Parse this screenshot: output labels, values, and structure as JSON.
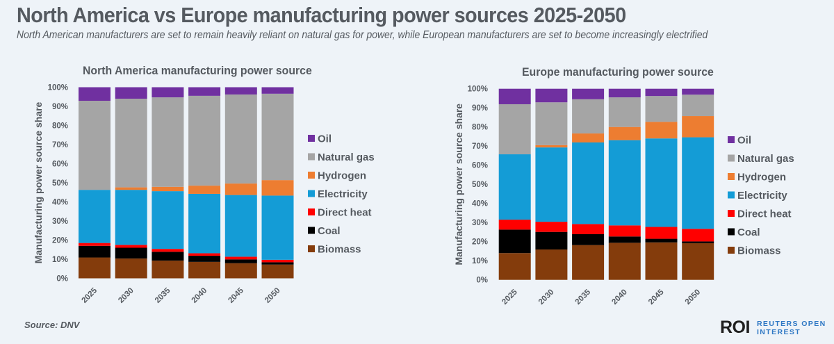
{
  "header": {
    "title": "North America vs Europe manufacturing power sources 2025-2050",
    "subtitle": "North American manufacturers are set to remain heavily reliant on natural gas for power, while European manufacturers are set to become increasingly electrified"
  },
  "footer": {
    "source": "Source:  DNV",
    "logo_mark": "ROI",
    "logo_line1": "REUTERS OPEN",
    "logo_line2": "INTEREST"
  },
  "colors": {
    "Oil": "#7030a0",
    "Natural gas": "#a5a5a5",
    "Hydrogen": "#ed7d31",
    "Electricity": "#149cd6",
    "Direct heat": "#ff0000",
    "Coal": "#000000",
    "Biomass": "#843c0c"
  },
  "chart_data": [
    {
      "type": "bar",
      "stacked": true,
      "title": "North America manufacturing power source",
      "xlabel": "",
      "ylabel": "Manufacturing power source share",
      "ylim": [
        0,
        100
      ],
      "yticks": [
        "0%",
        "10%",
        "20%",
        "30%",
        "40%",
        "50%",
        "60%",
        "70%",
        "80%",
        "90%",
        "100%"
      ],
      "categories": [
        "2025",
        "2030",
        "2035",
        "2040",
        "2045",
        "2050"
      ],
      "legend_position": "right",
      "legend_order": [
        "Oil",
        "Natural gas",
        "Hydrogen",
        "Electricity",
        "Direct heat",
        "Coal",
        "Biomass"
      ],
      "series": [
        {
          "name": "Biomass",
          "values": [
            10.9,
            10.4,
            9.3,
            8.6,
            7.9,
            7.2
          ]
        },
        {
          "name": "Coal",
          "values": [
            6.1,
            5.6,
            4.6,
            3.2,
            2.0,
            1.2
          ]
        },
        {
          "name": "Direct heat",
          "values": [
            1.5,
            1.5,
            1.5,
            1.3,
            1.4,
            1.3
          ]
        },
        {
          "name": "Electricity",
          "values": [
            27.8,
            28.8,
            30.2,
            31.1,
            32.3,
            33.6
          ]
        },
        {
          "name": "Hydrogen",
          "values": [
            0.0,
            1.3,
            2.3,
            4.3,
            6.0,
            8.1
          ]
        },
        {
          "name": "Natural gas",
          "values": [
            46.6,
            46.4,
            46.8,
            47.0,
            46.6,
            45.2
          ]
        },
        {
          "name": "Oil",
          "values": [
            7.1,
            6.0,
            5.3,
            4.5,
            3.8,
            3.4
          ]
        }
      ]
    },
    {
      "type": "bar",
      "stacked": true,
      "title": "Europe manufacturing power source",
      "xlabel": "",
      "ylabel": "Manufacturing power source share",
      "ylim": [
        0,
        100
      ],
      "yticks": [
        "0%",
        "10%",
        "20%",
        "30%",
        "40%",
        "50%",
        "60%",
        "70%",
        "80%",
        "90%",
        "100%"
      ],
      "categories": [
        "2025",
        "2030",
        "2035",
        "2040",
        "2045",
        "2050"
      ],
      "legend_position": "right",
      "legend_order": [
        "Oil",
        "Natural gas",
        "Hydrogen",
        "Electricity",
        "Direct heat",
        "Coal",
        "Biomass"
      ],
      "series": [
        {
          "name": "Biomass",
          "values": [
            14.0,
            15.9,
            18.2,
            19.4,
            19.6,
            19.2
          ]
        },
        {
          "name": "Coal",
          "values": [
            12.3,
            9.2,
            5.7,
            3.3,
            1.9,
            0.9
          ]
        },
        {
          "name": "Direct heat",
          "values": [
            5.2,
            5.3,
            5.3,
            5.8,
            6.2,
            6.6
          ]
        },
        {
          "name": "Electricity",
          "values": [
            34.2,
            38.9,
            42.7,
            44.6,
            46.3,
            47.9
          ]
        },
        {
          "name": "Hydrogen",
          "values": [
            0.0,
            1.2,
            4.7,
            6.9,
            8.7,
            11.1
          ]
        },
        {
          "name": "Natural gas",
          "values": [
            26.2,
            22.4,
            17.9,
            15.5,
            13.5,
            11.2
          ]
        },
        {
          "name": "Oil",
          "values": [
            8.1,
            7.1,
            5.5,
            4.5,
            3.8,
            3.1
          ]
        }
      ]
    }
  ]
}
